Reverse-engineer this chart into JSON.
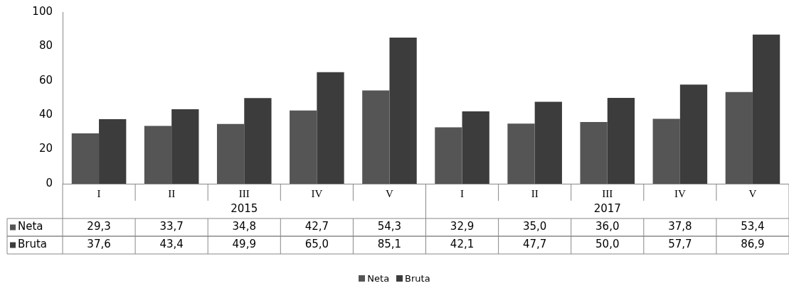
{
  "chart_data": {
    "type": "bar",
    "categories": [
      "I",
      "II",
      "III",
      "IV",
      "V",
      "I",
      "II",
      "III",
      "IV",
      "V"
    ],
    "series": [
      {
        "name": "Neta",
        "color": "#555555",
        "values": [
          29.3,
          33.7,
          34.8,
          42.7,
          54.3,
          32.9,
          35.0,
          36.0,
          37.8,
          53.4
        ],
        "value_labels": [
          "29,3",
          "33,7",
          "34,8",
          "42,7",
          "54,3",
          "32,9",
          "35,0",
          "36,0",
          "37,8",
          "53,4"
        ]
      },
      {
        "name": "Bruta",
        "color": "#3c3c3c",
        "values": [
          37.6,
          43.4,
          49.9,
          65.0,
          85.1,
          42.1,
          47.7,
          50.0,
          57.7,
          86.9
        ],
        "value_labels": [
          "37,6",
          "43,4",
          "49,9",
          "65,0",
          "85,1",
          "42,1",
          "47,7",
          "50,0",
          "57,7",
          "86,9"
        ]
      }
    ],
    "annotations": [
      "2015",
      "2017"
    ],
    "ylim": [
      0,
      100
    ],
    "yticks": [
      0,
      20,
      40,
      60,
      80,
      100
    ],
    "grid": false,
    "legend": "bottom"
  }
}
